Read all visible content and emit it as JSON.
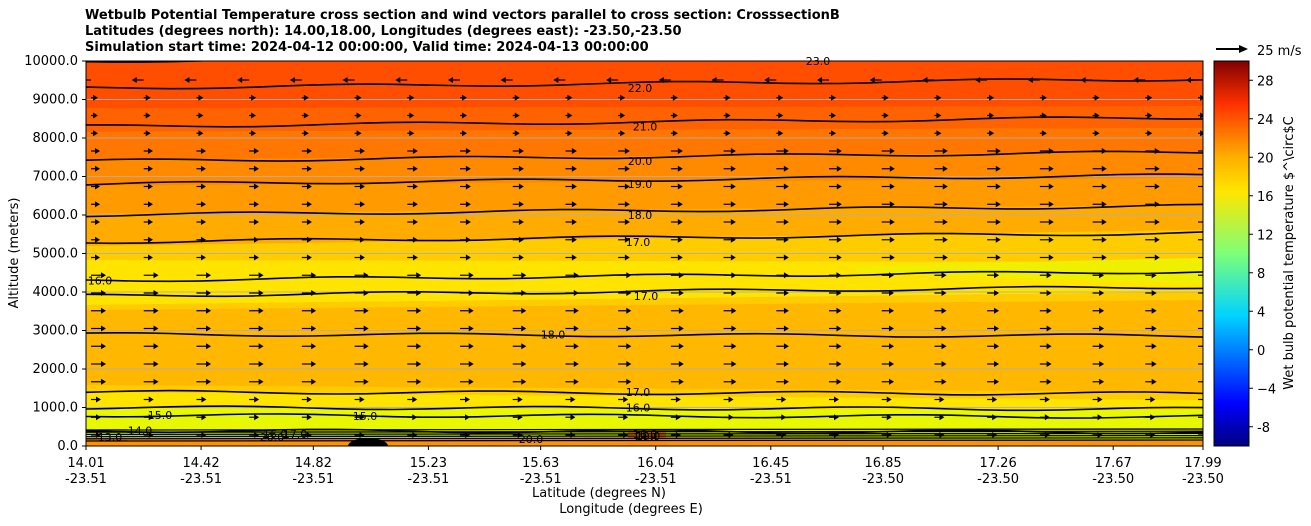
{
  "chart_data": {
    "type": "contourf",
    "title": [
      "Wetbulb Potential Temperature cross section and wind vectors parallel to cross section: CrosssectionB",
      "Latitudes (degrees north): 14.00,18.00, Longitudes (degrees east): -23.50,-23.50",
      "Simulation start time: 2024-04-12 00:00:00, Valid time: 2024-04-13 00:00:00"
    ],
    "ylabel": "Altitude (meters)",
    "xlabel": "Latitude (degrees N)",
    "xlabel2": "Longitude (degrees E)",
    "ylim": [
      0,
      10000
    ],
    "yticks": [
      "0.0",
      "1000.0",
      "2000.0",
      "3000.0",
      "4000.0",
      "5000.0",
      "6000.0",
      "7000.0",
      "8000.0",
      "9000.0",
      "10000.0"
    ],
    "xlim": [
      14.01,
      17.99
    ],
    "xticks": [
      {
        "lat": "14.01",
        "lon": "-23.51"
      },
      {
        "lat": "14.42",
        "lon": "-23.51"
      },
      {
        "lat": "14.82",
        "lon": "-23.51"
      },
      {
        "lat": "15.23",
        "lon": "-23.51"
      },
      {
        "lat": "15.63",
        "lon": "-23.51"
      },
      {
        "lat": "16.04",
        "lon": "-23.51"
      },
      {
        "lat": "16.45",
        "lon": "-23.51"
      },
      {
        "lat": "16.85",
        "lon": "-23.50"
      },
      {
        "lat": "17.26",
        "lon": "-23.50"
      },
      {
        "lat": "17.67",
        "lon": "-23.50"
      },
      {
        "lat": "17.99",
        "lon": "-23.50"
      }
    ],
    "colorbar": {
      "label": "Wet bulb potential temperature $^\\circ$C",
      "min": -10,
      "max": 30,
      "ticks": [
        "-8",
        "−4",
        "0",
        "4",
        "8",
        "12",
        "16",
        "20",
        "24",
        "28"
      ]
    },
    "quiver_key": "25 m/s",
    "contours": [
      {
        "value": 14.0,
        "label": "14.0",
        "alt": 400
      },
      {
        "value": 15.0,
        "label": "15.0",
        "alt": 800
      },
      {
        "value": 16.0,
        "label": "16.0",
        "alt": 1000
      },
      {
        "value": 17.0,
        "label": "17.0",
        "alt": 1400
      },
      {
        "value": 18.0,
        "label": "18.0",
        "alt": 2900
      },
      {
        "value": 17.0,
        "label": "17.0",
        "alt": 3900
      },
      {
        "value": 16.0,
        "label": "16.0",
        "alt": 4300
      },
      {
        "value": 17.0,
        "label": "17.0",
        "alt": 5300
      },
      {
        "value": 18.0,
        "label": "18.0",
        "alt": 6000
      },
      {
        "value": 19.0,
        "label": "19.0",
        "alt": 6800
      },
      {
        "value": 20.0,
        "label": "20.0",
        "alt": 7400
      },
      {
        "value": 21.0,
        "label": "21.0",
        "alt": 8300
      },
      {
        "value": 22.0,
        "label": "22.0",
        "alt": 9300
      },
      {
        "value": 23.0,
        "label": "23.0",
        "alt": 10000
      }
    ],
    "surface_labels": [
      "13.0",
      "20.0",
      "17.0",
      "16.0",
      "15.0",
      "20.0",
      "16.0",
      "19.0",
      "18.0"
    ]
  },
  "colors": {
    "contour": "#000000",
    "grid": "#b0b0b0"
  }
}
